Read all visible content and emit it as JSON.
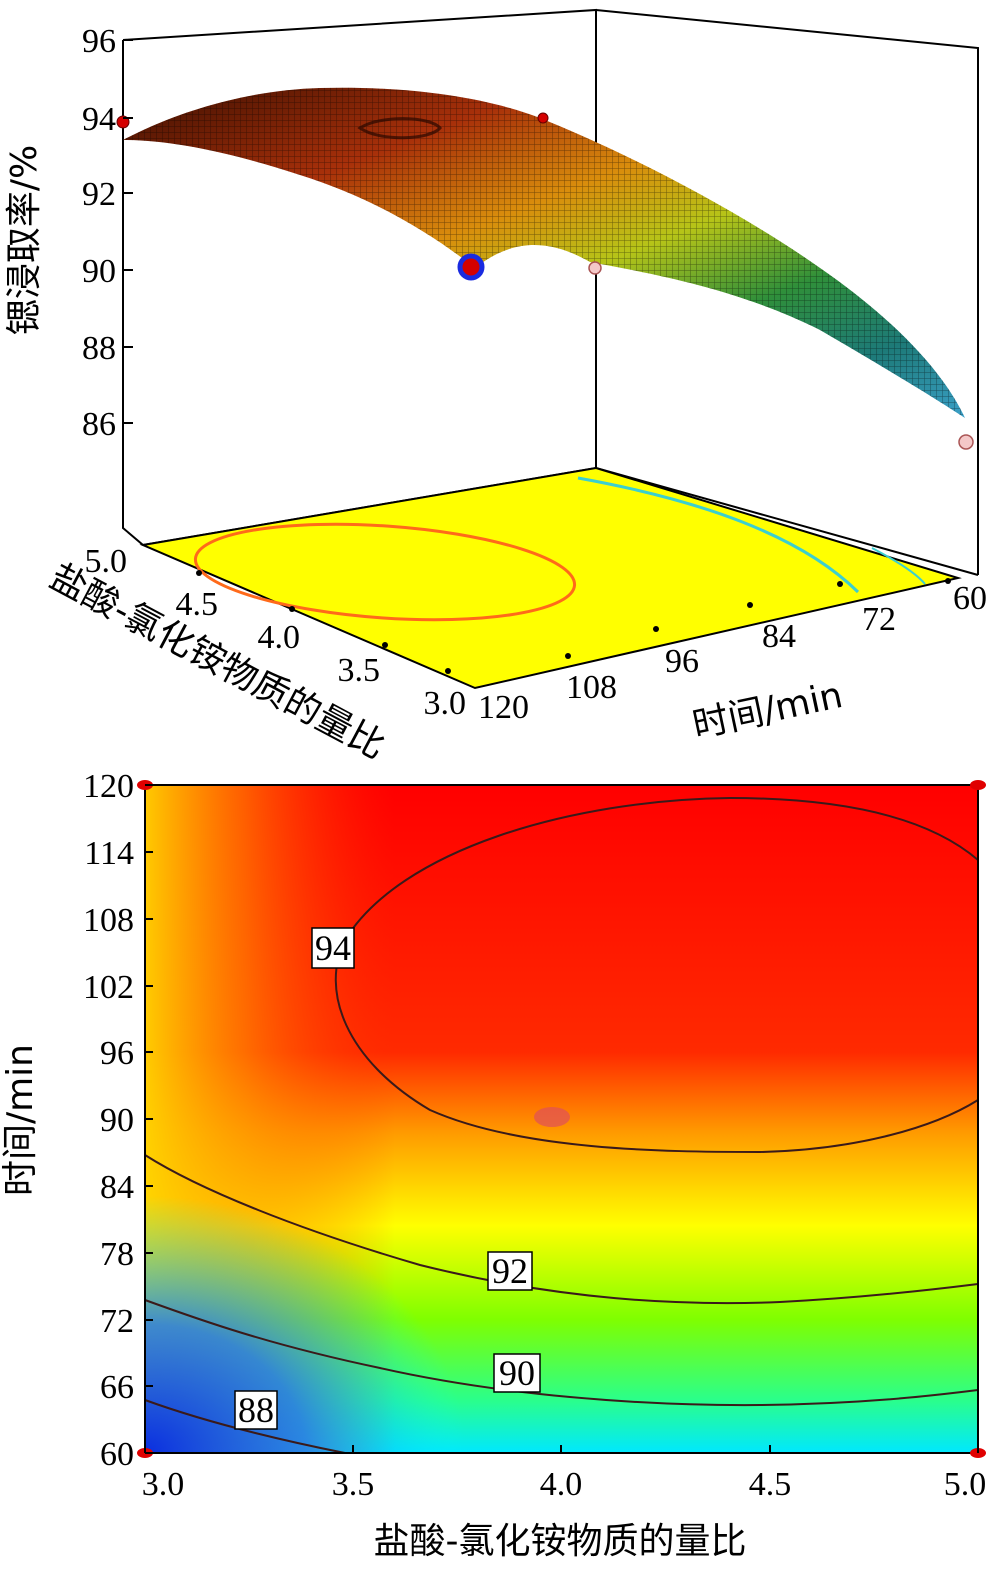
{
  "chart_data": [
    {
      "type": "surface",
      "zlabel": "锶浸取率/%",
      "xlabel": "盐酸-氯化铵物质的量比",
      "ylabel": "时间/min",
      "z_ticks": [
        "96",
        "94",
        "92",
        "90",
        "88",
        "86"
      ],
      "x_ticks": [
        "5.0",
        "4.5",
        "4.0",
        "3.5",
        "3.0"
      ],
      "y_ticks": [
        "120",
        "108",
        "96",
        "84",
        "72",
        "60"
      ],
      "zlim": [
        84,
        96
      ],
      "xlim": [
        3.0,
        5.0
      ],
      "ylim": [
        60,
        120
      ],
      "floor_contours": [
        {
          "level": 94,
          "color": "#ff6a1a"
        },
        {
          "level": 88,
          "color": "#3ccfcf"
        }
      ],
      "design_points": [
        {
          "x": 3.0,
          "y": 120,
          "z": 94.2
        },
        {
          "x": 5.0,
          "y": 120,
          "z": 94.0
        },
        {
          "x": 4.0,
          "y": 90,
          "z": 90.2
        },
        {
          "x": 3.0,
          "y": 60,
          "z": 85.8
        }
      ]
    },
    {
      "type": "contour",
      "xlabel": "盐酸-氯化铵物质的量比",
      "ylabel": "时间/min",
      "x_ticks": [
        "3.0",
        "3.5",
        "4.0",
        "4.5",
        "5.0"
      ],
      "y_ticks": [
        "120",
        "114",
        "108",
        "102",
        "96",
        "90",
        "84",
        "78",
        "72",
        "66",
        "60"
      ],
      "xlim": [
        3.0,
        5.0
      ],
      "ylim": [
        60,
        120
      ],
      "contours": [
        {
          "level": 94,
          "label": "94",
          "label_at": [
            3.43,
            104.5
          ]
        },
        {
          "level": 92,
          "label": "92",
          "label_at": [
            3.88,
            75.5
          ]
        },
        {
          "level": 90,
          "label": "90",
          "label_at": [
            3.9,
            67.3
          ]
        },
        {
          "level": 88,
          "label": "88",
          "label_at": [
            3.23,
            64.0
          ]
        }
      ],
      "colors": [
        "#0a2ee0",
        "#00ffff",
        "#33ff33",
        "#ffff00",
        "#ff8800",
        "#ff0000"
      ],
      "corner_points": [
        {
          "x": 3.0,
          "y": 120
        },
        {
          "x": 5.0,
          "y": 120
        },
        {
          "x": 3.0,
          "y": 60
        },
        {
          "x": 5.0,
          "y": 60
        }
      ]
    }
  ]
}
